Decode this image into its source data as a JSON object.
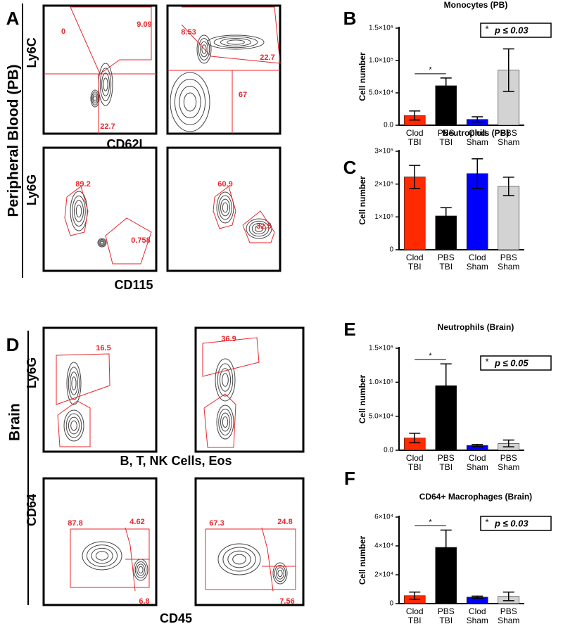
{
  "chart_data": [
    {
      "type": "bar",
      "panel": "B",
      "title": "Monocytes (PB)",
      "ylabel": "Cell number",
      "categories": [
        "Clod TBI",
        "PBS TBI",
        "Clod Sham",
        "PBS Sham"
      ],
      "values": [
        15000,
        61000,
        9000,
        85000
      ],
      "errors": [
        7000,
        12000,
        4000,
        33000
      ],
      "colors": [
        "#ff2a00",
        "#000000",
        "#0000ff",
        "#d3d3d3"
      ],
      "ylim": [
        0,
        150000
      ],
      "yticks": [
        {
          "value": 0,
          "label": "0.0"
        },
        {
          "value": 50000,
          "label": "5.0×10⁴"
        },
        {
          "value": 100000,
          "label": "1.0×10⁵"
        },
        {
          "value": 150000,
          "label": "1.5×10⁵"
        }
      ],
      "significance": "*",
      "annotation": "p ≤ 0.03"
    },
    {
      "type": "bar",
      "panel": "C",
      "title": "Neutrophils (PB)",
      "ylabel": "Cell number",
      "categories": [
        "Clod TBI",
        "PBS TBI",
        "Clod Sham",
        "PBS Sham"
      ],
      "values": [
        222000,
        103000,
        232000,
        193000
      ],
      "errors": [
        35000,
        25000,
        45000,
        28000
      ],
      "colors": [
        "#ff2a00",
        "#000000",
        "#0000ff",
        "#d3d3d3"
      ],
      "ylim": [
        0,
        300000
      ],
      "yticks": [
        0,
        {
          "value": 100000,
          "label": "1×10⁵"
        },
        {
          "value": 200000,
          "label": "2×10⁵"
        },
        {
          "value": 300000,
          "label": "3×10⁵"
        }
      ]
    },
    {
      "type": "bar",
      "panel": "E",
      "title": "Neutrophils (Brain)",
      "ylabel": "Cell number",
      "categories": [
        "Clod TBI",
        "PBS TBI",
        "Clod Sham",
        "PBS Sham"
      ],
      "values": [
        18000,
        95000,
        7000,
        10000
      ],
      "errors": [
        7000,
        32000,
        1500,
        5000
      ],
      "colors": [
        "#ff2a00",
        "#000000",
        "#0000ff",
        "#d3d3d3"
      ],
      "ylim": [
        0,
        150000
      ],
      "yticks": [
        {
          "value": 0,
          "label": "0.0"
        },
        {
          "value": 50000,
          "label": "5.0×10⁴"
        },
        {
          "value": 100000,
          "label": "1.0×10⁵"
        },
        {
          "value": 150000,
          "label": "1.5×10⁵"
        }
      ],
      "significance": "*",
      "annotation": "p ≤ 0.05"
    },
    {
      "type": "bar",
      "panel": "F",
      "title": "CD64+ Macrophages (Brain)",
      "ylabel": "Cell number",
      "categories": [
        "Clod TBI",
        "PBS TBI",
        "Clod Sham",
        "PBS Sham"
      ],
      "values": [
        5500,
        39000,
        4500,
        5000
      ],
      "errors": [
        2500,
        12000,
        700,
        3000
      ],
      "colors": [
        "#ff2a00",
        "#000000",
        "#0000ff",
        "#d3d3d3"
      ],
      "ylim": [
        0,
        60000
      ],
      "yticks": [
        0,
        {
          "value": 20000,
          "label": "2×10⁴"
        },
        {
          "value": 40000,
          "label": "4×10⁴"
        },
        {
          "value": 60000,
          "label": "6×10⁴"
        }
      ],
      "significance": "*",
      "annotation": "p ≤ 0.03"
    }
  ],
  "flow_panels": [
    {
      "letter": "A",
      "tissue": "Peripheral Blood (PB)",
      "rows": [
        {
          "y_label": "Ly6C",
          "x_label": "CD62L",
          "plots": [
            {
              "gates": [
                "0",
                "9.09",
                "22.7"
              ]
            },
            {
              "gates": [
                "8.53",
                "22.7",
                "67"
              ]
            }
          ]
        },
        {
          "y_label": "Ly6G",
          "x_label": "CD115",
          "plots": [
            {
              "gates": [
                "89.2",
                "0.758"
              ]
            },
            {
              "gates": [
                "60.9",
                "32.5"
              ]
            }
          ]
        }
      ]
    },
    {
      "letter": "D",
      "tissue": "Brain",
      "rows": [
        {
          "y_label": "Ly6G",
          "x_label": "B, T, NK Cells, Eos",
          "plots": [
            {
              "gates": [
                "16.5"
              ]
            },
            {
              "gates": [
                "36.9"
              ]
            }
          ]
        },
        {
          "y_label": "CD64",
          "x_label": "CD45",
          "plots": [
            {
              "gates": [
                "87.8",
                "4.62",
                "6.8"
              ]
            },
            {
              "gates": [
                "67.3",
                "24.8",
                "7.56"
              ]
            }
          ]
        }
      ]
    }
  ]
}
